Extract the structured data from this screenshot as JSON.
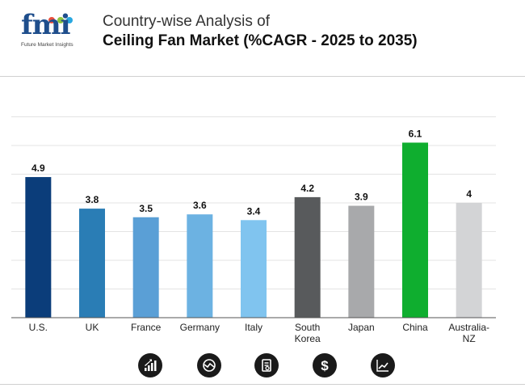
{
  "header": {
    "logo_text": "fmi",
    "logo_subtitle": "Future Market Insights",
    "title_line1": "Country-wise Analysis of",
    "title_line2": "Ceiling Fan Market (%CAGR - 2025 to 2035)"
  },
  "colors": {
    "logo_blue": "#1f4e8c",
    "dot_colors": [
      "#e94e3c",
      "#8cc63f",
      "#29a8e0"
    ]
  },
  "chart_data": {
    "type": "bar",
    "title": "Ceiling Fan Market (%CAGR - 2025 to 2035)",
    "xlabel": "",
    "ylabel": "",
    "ylim": [
      0,
      7
    ],
    "grid": true,
    "categories": [
      {
        "label": [
          "U.S."
        ],
        "value": 4.9,
        "value_label": "4.9",
        "color": "#0b3d7a"
      },
      {
        "label": [
          "UK"
        ],
        "value": 3.8,
        "value_label": "3.8",
        "color": "#2a7db5"
      },
      {
        "label": [
          "France"
        ],
        "value": 3.5,
        "value_label": "3.5",
        "color": "#5a9fd6"
      },
      {
        "label": [
          "Germany"
        ],
        "value": 3.6,
        "value_label": "3.6",
        "color": "#6cb2e2"
      },
      {
        "label": [
          "Italy"
        ],
        "value": 3.4,
        "value_label": "3.4",
        "color": "#80c4ef"
      },
      {
        "label": [
          "South",
          "Korea"
        ],
        "value": 4.2,
        "value_label": "4.2",
        "color": "#585a5c"
      },
      {
        "label": [
          "Japan"
        ],
        "value": 3.9,
        "value_label": "3.9",
        "color": "#a8a9ab"
      },
      {
        "label": [
          "China"
        ],
        "value": 6.1,
        "value_label": "6.1",
        "color": "#0fae2f"
      },
      {
        "label": [
          "Australia-",
          "NZ"
        ],
        "value": 4.0,
        "value_label": "4",
        "color": "#d3d4d6"
      }
    ]
  },
  "footer_icons": [
    {
      "name": "growth-bars-icon"
    },
    {
      "name": "trend-chart-icon"
    },
    {
      "name": "report-document-icon"
    },
    {
      "name": "dollar-icon"
    },
    {
      "name": "line-graph-icon"
    }
  ]
}
